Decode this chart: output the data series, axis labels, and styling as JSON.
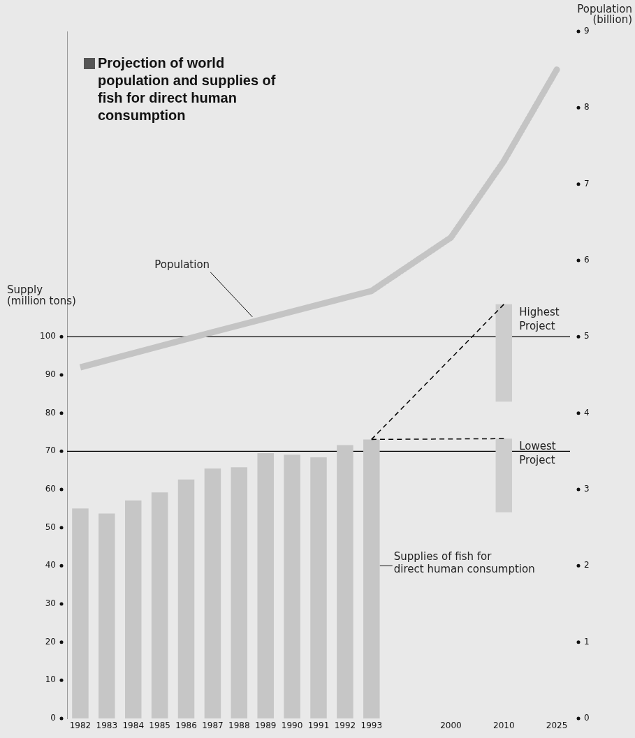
{
  "chart_data": {
    "type": "bar",
    "title": "Projection of world population and supplies of fish for direct human consumption",
    "ylabel": "Supply (million tons)",
    "y2label": "Population (billion)",
    "categories": [
      "1982",
      "1983",
      "1984",
      "1985",
      "1986",
      "1987",
      "1988",
      "1989",
      "1990",
      "1991",
      "1992",
      "1993",
      null,
      null,
      "2000",
      null,
      "2010",
      null,
      "2025"
    ],
    "series": [
      {
        "name": "Supplies of fish for direct human consumption",
        "color": "#c6c6c6",
        "values": [
          55,
          53.7,
          57.1,
          59.2,
          62.6,
          65.5,
          65.8,
          69.5,
          69.1,
          68.4,
          71.6,
          73.1,
          null,
          null,
          null,
          null,
          null,
          null,
          null
        ]
      },
      {
        "name": "Highest Project",
        "color": "#cdcdcd",
        "base": [
          null,
          null,
          null,
          null,
          null,
          null,
          null,
          null,
          null,
          null,
          null,
          null,
          null,
          null,
          null,
          null,
          83,
          null,
          null
        ],
        "values": [
          null,
          null,
          null,
          null,
          null,
          null,
          null,
          null,
          null,
          null,
          null,
          null,
          null,
          null,
          null,
          null,
          25.5,
          null,
          null
        ]
      },
      {
        "name": "Lowest Project",
        "color": "#cdcdcd",
        "base": [
          null,
          null,
          null,
          null,
          null,
          null,
          null,
          null,
          null,
          null,
          null,
          null,
          null,
          null,
          null,
          null,
          54,
          null,
          null
        ],
        "values": [
          null,
          null,
          null,
          null,
          null,
          null,
          null,
          null,
          null,
          null,
          null,
          null,
          null,
          null,
          null,
          null,
          19.3,
          null,
          null
        ]
      },
      {
        "type": "line",
        "color": "#000000",
        "line_style": "dashed",
        "values": [
          null,
          null,
          null,
          null,
          null,
          null,
          null,
          null,
          null,
          null,
          null,
          73.1,
          null,
          null,
          null,
          null,
          108.5,
          null,
          null
        ]
      },
      {
        "type": "line",
        "color": "#000000",
        "line_style": "dashed",
        "values": [
          null,
          null,
          null,
          null,
          null,
          null,
          null,
          null,
          null,
          null,
          null,
          73.1,
          null,
          null,
          null,
          null,
          73.3,
          null,
          null
        ]
      },
      {
        "name": "Population",
        "type": "line",
        "axis": "y2",
        "color": "#c4c4c4",
        "line_style": "solid",
        "values": [
          4.6,
          null,
          null,
          null,
          null,
          5.06,
          null,
          null,
          null,
          null,
          null,
          5.6,
          null,
          null,
          null,
          null,
          null,
          null,
          null
        ]
      },
      {
        "type": "line",
        "axis": "y2",
        "color": "#c4c4c4",
        "line_style": "dotted",
        "values": [
          null,
          null,
          null,
          null,
          null,
          null,
          null,
          null,
          null,
          null,
          null,
          5.6,
          null,
          null,
          6.3,
          null,
          7.3,
          null,
          8.5
        ]
      }
    ],
    "ylim": [
      0,
      180
    ],
    "yticks": [
      0,
      10,
      20,
      30,
      40,
      50,
      60,
      70,
      80,
      90,
      100
    ],
    "y2lim": [
      0,
      9
    ],
    "y2ticks": [
      0,
      1,
      2,
      3,
      4,
      5,
      6,
      7,
      8,
      9
    ],
    "ref_lines": [
      {
        "axis": "y",
        "value": 100,
        "color": "#000000"
      },
      {
        "axis": "y",
        "value": 70,
        "color": "#000000"
      }
    ],
    "grid": false,
    "legend": false,
    "marker": "none"
  }
}
